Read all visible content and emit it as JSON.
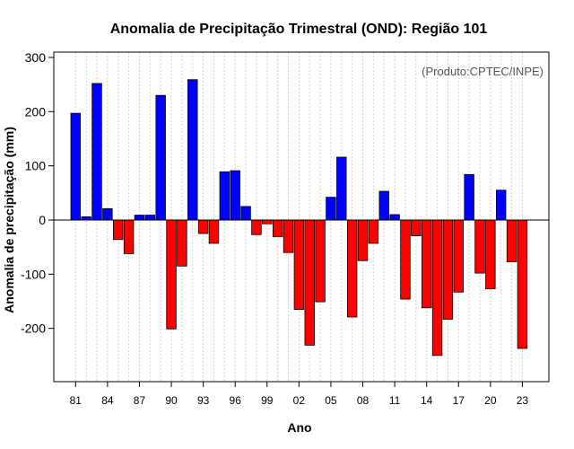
{
  "chart_data": {
    "type": "bar",
    "title": "Anomalia de Precipitação Trimestral (OND): Região 101",
    "xlabel": "Ano",
    "ylabel": "Anomalia de precipitação (mm)",
    "annotation": "(Produto:CPTEC/INPE)",
    "ylim": [
      -300,
      310
    ],
    "yticks": [
      -200,
      -100,
      0,
      100,
      200,
      300
    ],
    "xtick_labels": [
      "81",
      "84",
      "87",
      "90",
      "93",
      "96",
      "99",
      "02",
      "05",
      "08",
      "11",
      "14",
      "17",
      "20",
      "23"
    ],
    "grid": true,
    "positive_color": "#0000ff",
    "negative_color": "#ff0000",
    "categories": [
      "1981",
      "1982",
      "1983",
      "1984",
      "1985",
      "1986",
      "1987",
      "1988",
      "1989",
      "1990",
      "1991",
      "1992",
      "1993",
      "1994",
      "1995",
      "1996",
      "1997",
      "1998",
      "1999",
      "2000",
      "2001",
      "2002",
      "2003",
      "2004",
      "2005",
      "2006",
      "2007",
      "2008",
      "2009",
      "2010",
      "2011",
      "2012",
      "2013",
      "2014",
      "2015",
      "2016",
      "2017",
      "2018",
      "2019",
      "2020",
      "2021",
      "2022",
      "2023"
    ],
    "values": [
      197,
      6,
      252,
      21,
      -36,
      -62,
      9,
      9,
      230,
      -201,
      -85,
      259,
      -25,
      -43,
      89,
      91,
      25,
      -27,
      -7,
      -31,
      -60,
      -165,
      -231,
      -151,
      42,
      116,
      -179,
      -75,
      -43,
      53,
      10,
      -146,
      -29,
      -162,
      -250,
      -183,
      -133,
      84,
      -98,
      -127,
      55,
      -77,
      -237
    ]
  }
}
